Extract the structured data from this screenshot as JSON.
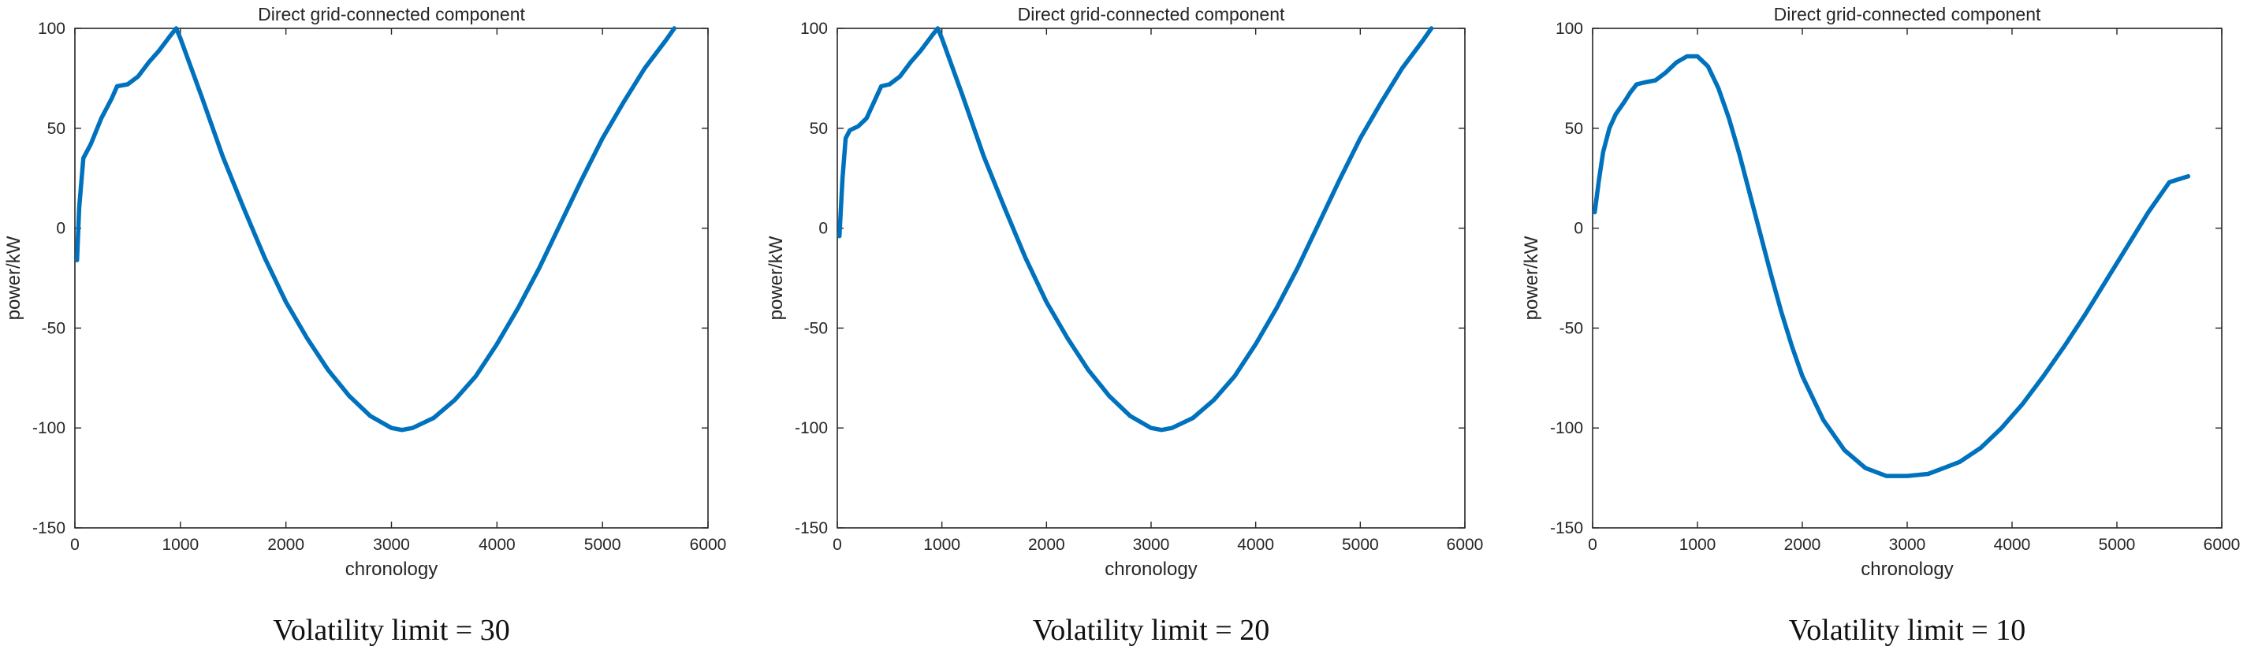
{
  "figure": {
    "line_color": "#0072BD"
  },
  "chart_data": [
    {
      "type": "line",
      "title": "Direct grid-connected component",
      "xlabel": "chronology",
      "ylabel": "power/kW",
      "caption": "Volatility limit = 30",
      "xlim": [
        0,
        6000
      ],
      "ylim": [
        -150,
        100
      ],
      "xticks": [
        0,
        1000,
        2000,
        3000,
        4000,
        5000,
        6000
      ],
      "yticks": [
        -150,
        -100,
        -50,
        0,
        50,
        100
      ],
      "grid": false,
      "series": [
        {
          "name": "Direct grid-connected component",
          "x": [
            20,
            40,
            80,
            150,
            250,
            300,
            350,
            400,
            500,
            600,
            700,
            800,
            900,
            960,
            1000,
            1200,
            1400,
            1600,
            1800,
            2000,
            2200,
            2400,
            2600,
            2800,
            3000,
            3100,
            3200,
            3400,
            3600,
            3800,
            4000,
            4200,
            4400,
            4600,
            4800,
            5000,
            5200,
            5400,
            5600,
            5680
          ],
          "y": [
            -16,
            10,
            35,
            42,
            55,
            60,
            65,
            71,
            72,
            76,
            83,
            89,
            96,
            100,
            95,
            66,
            36,
            10,
            -15,
            -37,
            -55,
            -71,
            -84,
            -94,
            -100,
            -101,
            -100,
            -95,
            -86,
            -74,
            -58,
            -40,
            -20,
            2,
            24,
            45,
            63,
            80,
            94,
            100
          ]
        }
      ]
    },
    {
      "type": "line",
      "title": "Direct grid-connected component",
      "xlabel": "chronology",
      "ylabel": "power/kW",
      "caption": "Volatility limit = 20",
      "xlim": [
        0,
        6000
      ],
      "ylim": [
        -150,
        100
      ],
      "xticks": [
        0,
        1000,
        2000,
        3000,
        4000,
        5000,
        6000
      ],
      "yticks": [
        -150,
        -100,
        -50,
        0,
        50,
        100
      ],
      "grid": false,
      "series": [
        {
          "name": "Direct grid-connected component",
          "x": [
            20,
            50,
            80,
            120,
            200,
            280,
            350,
            420,
            500,
            600,
            700,
            800,
            900,
            960,
            1000,
            1200,
            1400,
            1600,
            1800,
            2000,
            2200,
            2400,
            2600,
            2800,
            3000,
            3100,
            3200,
            3400,
            3600,
            3800,
            4000,
            4200,
            4400,
            4600,
            4800,
            5000,
            5200,
            5400,
            5600,
            5680
          ],
          "y": [
            -4,
            25,
            45,
            49,
            51,
            55,
            63,
            71,
            72,
            76,
            83,
            89,
            96,
            100,
            95,
            66,
            36,
            10,
            -15,
            -37,
            -55,
            -71,
            -84,
            -94,
            -100,
            -101,
            -100,
            -95,
            -86,
            -74,
            -58,
            -40,
            -20,
            2,
            24,
            45,
            63,
            80,
            94,
            100
          ]
        }
      ]
    },
    {
      "type": "line",
      "title": "Direct grid-connected component",
      "xlabel": "chronology",
      "ylabel": "power/kW",
      "caption": "Volatility limit = 10",
      "xlim": [
        0,
        6000
      ],
      "ylim": [
        -150,
        100
      ],
      "xticks": [
        0,
        1000,
        2000,
        3000,
        4000,
        5000,
        6000
      ],
      "yticks": [
        -150,
        -100,
        -50,
        0,
        50,
        100
      ],
      "grid": false,
      "series": [
        {
          "name": "Direct grid-connected component",
          "x": [
            20,
            60,
            100,
            160,
            220,
            300,
            360,
            420,
            500,
            600,
            700,
            800,
            900,
            1000,
            1100,
            1200,
            1300,
            1400,
            1500,
            1600,
            1700,
            1800,
            1900,
            2000,
            2200,
            2400,
            2600,
            2800,
            3000,
            3200,
            3350,
            3500,
            3700,
            3900,
            4100,
            4300,
            4500,
            4700,
            4900,
            5100,
            5300,
            5500,
            5680
          ],
          "y": [
            8,
            24,
            38,
            50,
            57,
            63,
            68,
            72,
            73,
            74,
            78,
            83,
            86,
            86,
            81,
            70,
            55,
            37,
            17,
            -3,
            -23,
            -42,
            -59,
            -74,
            -96,
            -111,
            -120,
            -124,
            -124,
            -123,
            -120,
            -117,
            -110,
            -100,
            -88,
            -74,
            -59,
            -43,
            -26,
            -9,
            8,
            23,
            26
          ]
        }
      ]
    }
  ]
}
